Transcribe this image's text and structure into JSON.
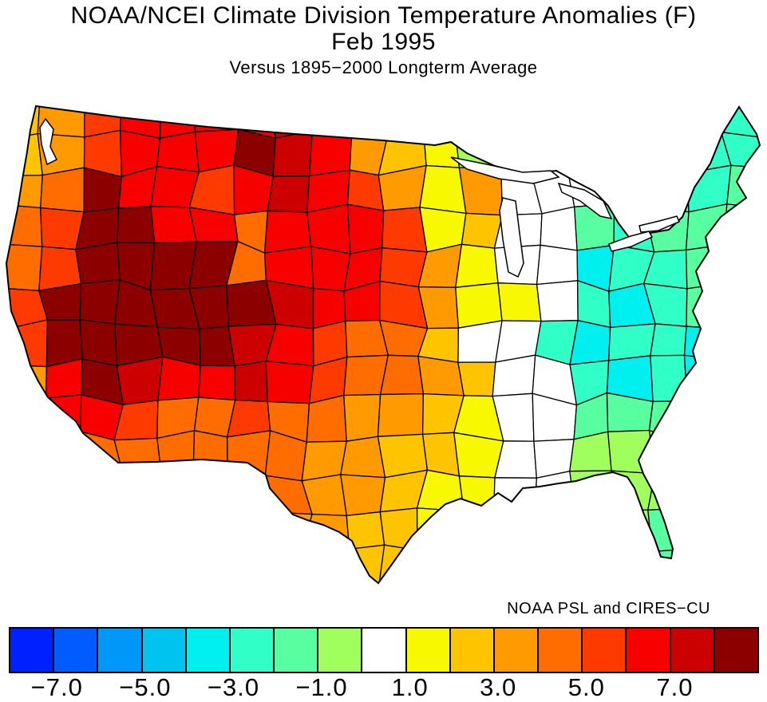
{
  "header": {
    "title_line1": "NOAA/NCEI Climate Division Temperature Anomalies (F)",
    "title_line2": "Feb 1995",
    "subtitle": "Versus 1895−2000 Longterm Average"
  },
  "credit": "NOAA PSL and CIRES−CU",
  "colorbar": {
    "units": "F",
    "palette": [
      "#0020FF",
      "#005CFF",
      "#0098F8",
      "#00C4F0",
      "#00F0F0",
      "#30FFC8",
      "#58FFA0",
      "#A0FF5C",
      "#FFFFFF",
      "#F8F800",
      "#FFC400",
      "#FF9A00",
      "#FF6C00",
      "#FF3A00",
      "#F80000",
      "#CC0000",
      "#8C0000"
    ],
    "tick_labels": [
      "−7.0",
      "−5.0",
      "−3.0",
      "−1.0",
      "1.0",
      "3.0",
      "5.0",
      "7.0"
    ],
    "segment_count": 17,
    "border_color": "#000000"
  },
  "map": {
    "type": "choropleth",
    "region": "contiguous United States climate divisions",
    "value_meaning": "temperature anomaly (F) vs 1895-2000 longterm average",
    "grid_cols": 20,
    "grid_rows": 13,
    "anomaly_grid": [
      [
        10,
        11,
        13,
        14,
        14,
        14,
        14,
        15,
        16,
        14,
        11,
        10,
        9,
        7,
        8,
        8,
        5,
        5,
        5,
        5
      ],
      [
        10,
        11,
        13,
        14,
        14,
        14,
        16,
        15,
        14,
        11,
        10,
        9,
        7,
        8,
        8,
        8,
        5,
        6,
        5,
        5
      ],
      [
        11,
        12,
        16,
        14,
        14,
        13,
        14,
        15,
        14,
        13,
        11,
        9,
        11,
        8,
        8,
        8,
        5,
        6,
        5,
        6
      ],
      [
        12,
        13,
        16,
        16,
        14,
        14,
        12,
        14,
        14,
        14,
        13,
        9,
        10,
        8,
        8,
        6,
        5,
        6,
        6,
        6
      ],
      [
        12,
        13,
        16,
        16,
        16,
        16,
        12,
        14,
        14,
        14,
        13,
        11,
        9,
        8,
        8,
        4,
        5,
        5,
        6,
        6
      ],
      [
        13,
        16,
        16,
        16,
        16,
        16,
        16,
        15,
        14,
        14,
        13,
        11,
        9,
        9,
        8,
        5,
        4,
        5,
        6,
        6
      ],
      [
        13,
        16,
        16,
        16,
        16,
        16,
        15,
        14,
        13,
        12,
        12,
        10,
        8,
        8,
        5,
        4,
        5,
        5,
        4,
        5
      ],
      [
        11,
        14,
        16,
        15,
        14,
        14,
        15,
        14,
        13,
        12,
        12,
        11,
        10,
        8,
        8,
        5,
        4,
        5,
        4,
        4
      ],
      [
        11,
        14,
        14,
        13,
        12,
        12,
        13,
        12,
        12,
        11,
        11,
        10,
        9,
        8,
        8,
        6,
        6,
        6,
        6,
        6
      ],
      [
        11,
        12,
        12,
        12,
        12,
        12,
        12,
        12,
        11,
        11,
        10,
        10,
        9,
        8,
        8,
        7,
        7,
        7,
        6,
        6
      ],
      [
        12,
        12,
        12,
        12,
        12,
        12,
        13,
        12,
        11,
        11,
        10,
        9,
        9,
        8,
        8,
        7,
        7,
        7,
        6,
        6
      ],
      [
        11,
        11,
        11,
        11,
        11,
        11,
        12,
        11,
        11,
        10,
        10,
        9,
        9,
        8,
        8,
        6,
        7,
        6,
        6,
        6
      ],
      [
        11,
        11,
        11,
        11,
        11,
        11,
        11,
        11,
        10,
        10,
        10,
        9,
        9,
        8,
        8,
        6,
        6,
        6,
        6,
        6
      ]
    ]
  }
}
